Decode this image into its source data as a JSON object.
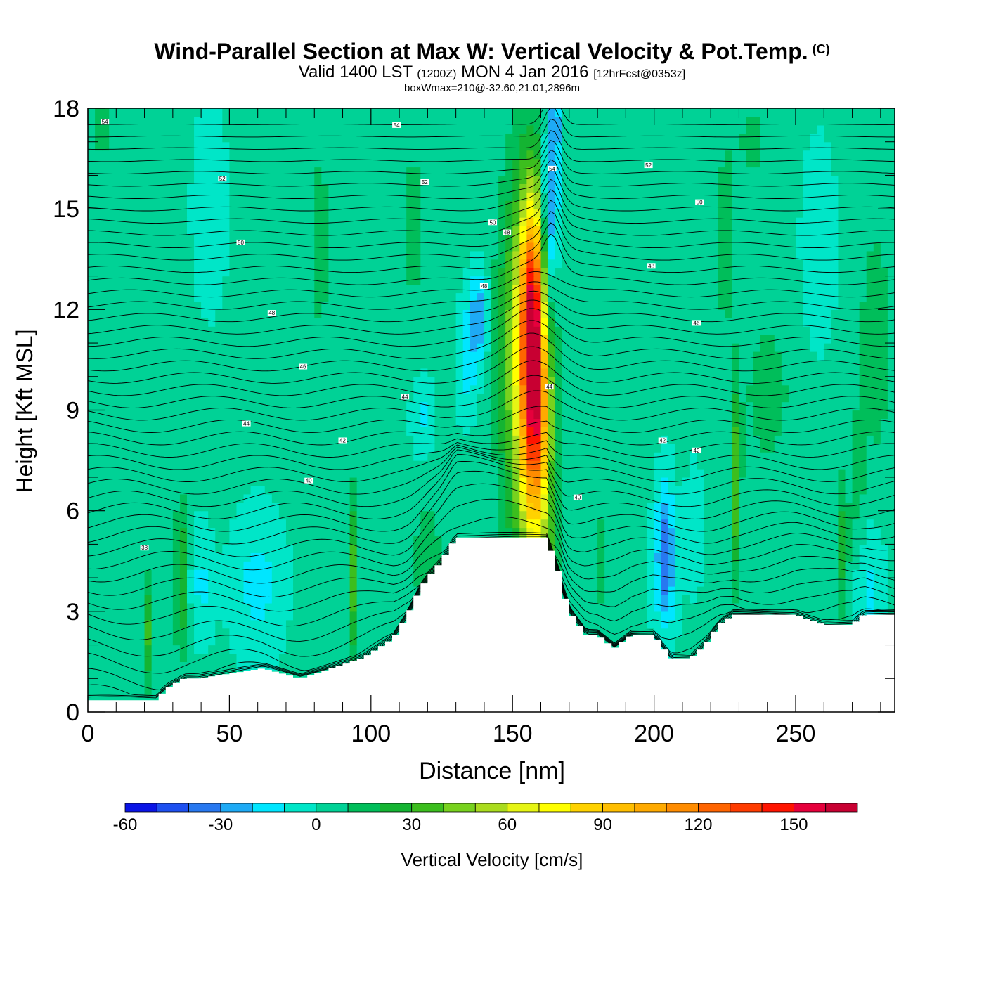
{
  "chart_data": {
    "type": "heatmap",
    "title": "Wind-Parallel Section at Max W: Vertical Velocity & Pot.Temp.",
    "title_mark": "(C)",
    "subtitle": {
      "valid": "Valid 1400 LST",
      "utc": "(1200Z)",
      "date": "MON 4 Jan 2016",
      "forecast": "[12hrFcst@0353z]"
    },
    "info_line": "boxWmax=210@-32.60,21.01,2896m",
    "xlabel": "Distance [nm]",
    "ylabel": "Height [Kft MSL]",
    "xlim": [
      0,
      285
    ],
    "ylim": [
      0,
      18
    ],
    "x_ticks": [
      0,
      50,
      100,
      150,
      200,
      250
    ],
    "x_tick_labels": [
      "0",
      "50",
      "100",
      "150",
      "200",
      "250"
    ],
    "y_ticks": [
      0,
      3,
      6,
      9,
      12,
      15,
      18
    ],
    "y_tick_labels": [
      "0",
      "3",
      "6",
      "9",
      "12",
      "15",
      "18"
    ],
    "colorbar": {
      "label": "Vertical Velocity [cm/s]",
      "bounds": [
        -60,
        -50,
        -40,
        -30,
        -20,
        -10,
        0,
        10,
        20,
        30,
        40,
        50,
        60,
        70,
        80,
        90,
        100,
        110,
        120,
        130,
        140,
        150,
        160,
        170
      ],
      "colors": [
        "#0a14e6",
        "#1e50f0",
        "#2878f0",
        "#1eaaf5",
        "#00e6ff",
        "#00e6c8",
        "#00d296",
        "#00be5a",
        "#14b432",
        "#3cbe1e",
        "#78d21e",
        "#aadc1e",
        "#e6f514",
        "#ffff00",
        "#ffd200",
        "#ffbe00",
        "#ffaa00",
        "#ff8c00",
        "#ff6400",
        "#ff3c00",
        "#ff1400",
        "#e6003c",
        "#c80032"
      ],
      "tick_values": [
        -60,
        -30,
        0,
        30,
        60,
        90,
        120,
        150
      ],
      "tick_labels": [
        "-60",
        "-30",
        "0",
        "30",
        "60",
        "90",
        "120",
        "150"
      ]
    },
    "background_w": 2,
    "w_features": [
      {
        "x": 158,
        "y": 10,
        "sx": 3.6,
        "sy": 3.5,
        "w": 158
      },
      {
        "x": 151,
        "y": 10.5,
        "sx": 4.5,
        "sy": 3.8,
        "w": 40
      },
      {
        "x": 156,
        "y": 12.5,
        "sx": 2.5,
        "sy": 2,
        "w": 30
      },
      {
        "x": 163,
        "y": 15,
        "sx": 2.2,
        "sy": 1.7,
        "w": -48
      },
      {
        "x": 162,
        "y": 12,
        "sx": 1.6,
        "sy": 1.4,
        "w": -28
      },
      {
        "x": 165,
        "y": 17.5,
        "sx": 1.3,
        "sy": 0.7,
        "w": -30
      },
      {
        "x": 138,
        "y": 11.8,
        "sx": 2.2,
        "sy": 0.9,
        "w": -32
      },
      {
        "x": 134,
        "y": 10.5,
        "sx": 2.5,
        "sy": 1.1,
        "w": -18
      },
      {
        "x": 118,
        "y": 8.8,
        "sx": 2.5,
        "sy": 0.9,
        "w": -14
      },
      {
        "x": 94,
        "y": 4,
        "sx": 1.3,
        "sy": 1.8,
        "w": 34
      },
      {
        "x": 33,
        "y": 4,
        "sx": 1.6,
        "sy": 1.6,
        "w": 32
      },
      {
        "x": 21,
        "y": 2.4,
        "sx": 1.3,
        "sy": 1.2,
        "w": 30
      },
      {
        "x": 229,
        "y": 6.8,
        "sx": 1.2,
        "sy": 2,
        "w": 38
      },
      {
        "x": 267,
        "y": 5,
        "sx": 1.2,
        "sy": 1.5,
        "w": 28
      },
      {
        "x": 272,
        "y": 7,
        "sx": 1.5,
        "sy": 1.5,
        "w": 14
      },
      {
        "x": 204,
        "y": 5.2,
        "sx": 2.3,
        "sy": 1.3,
        "w": -30
      },
      {
        "x": 204,
        "y": 3.8,
        "sx": 2.8,
        "sy": 1.2,
        "w": -18
      },
      {
        "x": 60,
        "y": 3.8,
        "sx": 6,
        "sy": 1.4,
        "w": -16
      },
      {
        "x": 40,
        "y": 3.8,
        "sx": 3,
        "sy": 1.1,
        "w": -14
      },
      {
        "x": 276,
        "y": 3.5,
        "sx": 3.5,
        "sy": 1.3,
        "w": -14
      },
      {
        "x": 214,
        "y": 5.5,
        "sx": 2,
        "sy": 1.2,
        "w": -12
      },
      {
        "x": 120,
        "y": 4.5,
        "sx": 4,
        "sy": 1.5,
        "w": 14
      },
      {
        "x": 165,
        "y": 5,
        "sx": 3,
        "sy": 1.5,
        "w": 14
      },
      {
        "x": 181,
        "y": 4.5,
        "sx": 2,
        "sy": 1.5,
        "w": 12
      },
      {
        "x": 82,
        "y": 14,
        "sx": 3,
        "sy": 2.5,
        "w": 12
      },
      {
        "x": 115,
        "y": 14.5,
        "sx": 2.5,
        "sy": 2.5,
        "w": 12
      },
      {
        "x": 225,
        "y": 14,
        "sx": 3,
        "sy": 2.5,
        "w": 12
      },
      {
        "x": 240,
        "y": 9.5,
        "sx": 6,
        "sy": 1.6,
        "w": 14
      },
      {
        "x": 278,
        "y": 11,
        "sx": 4,
        "sy": 2.5,
        "w": 16
      },
      {
        "x": 5,
        "y": 17.5,
        "sx": 3,
        "sy": 0.8,
        "w": 12
      },
      {
        "x": 258,
        "y": 14,
        "sx": 4,
        "sy": 2,
        "w": -9
      },
      {
        "x": 43,
        "y": 15,
        "sx": 4,
        "sy": 2,
        "w": -9
      },
      {
        "x": 235,
        "y": 17,
        "sx": 5,
        "sy": 1.2,
        "w": 10
      }
    ],
    "terrain_profile": {
      "x": [
        0,
        24,
        28,
        34,
        39,
        62,
        75,
        86,
        97,
        108,
        113,
        117,
        120,
        125,
        130,
        135,
        145,
        150,
        153,
        158,
        162,
        166,
        168,
        170,
        176,
        180,
        186,
        192,
        200,
        206,
        213,
        218,
        223,
        228,
        240,
        250,
        260,
        270,
        274,
        285
      ],
      "y": [
        0.35,
        0.35,
        0.7,
        1.0,
        1.0,
        1.3,
        1.0,
        1.3,
        1.6,
        2.2,
        2.9,
        3.6,
        4.0,
        4.5,
        5.2,
        5.2,
        5.2,
        5.2,
        5.2,
        5.2,
        5.2,
        4.3,
        3.6,
        3.0,
        2.3,
        2.3,
        1.9,
        2.3,
        2.3,
        1.6,
        1.6,
        2.0,
        2.6,
        2.9,
        2.9,
        2.9,
        2.6,
        2.6,
        2.9,
        2.9
      ]
    },
    "theta_labels": [
      {
        "text": "54",
        "x": 6,
        "y": 17.6
      },
      {
        "text": "54",
        "x": 109,
        "y": 17.5
      },
      {
        "text": "54",
        "x": 164,
        "y": 16.2
      },
      {
        "text": "52",
        "x": 47.5,
        "y": 15.9
      },
      {
        "text": "52",
        "x": 119,
        "y": 15.8
      },
      {
        "text": "52",
        "x": 198,
        "y": 16.3
      },
      {
        "text": "50",
        "x": 143,
        "y": 14.6
      },
      {
        "text": "50",
        "x": 216,
        "y": 15.2
      },
      {
        "text": "50",
        "x": 54,
        "y": 14
      },
      {
        "text": "48",
        "x": 148,
        "y": 14.3
      },
      {
        "text": "48",
        "x": 140,
        "y": 12.7
      },
      {
        "text": "48",
        "x": 199,
        "y": 13.3
      },
      {
        "text": "48",
        "x": 65,
        "y": 11.9
      },
      {
        "text": "46",
        "x": 215,
        "y": 11.6
      },
      {
        "text": "46",
        "x": 76,
        "y": 10.3
      },
      {
        "text": "44",
        "x": 163,
        "y": 9.7
      },
      {
        "text": "44",
        "x": 112,
        "y": 9.4
      },
      {
        "text": "44",
        "x": 56,
        "y": 8.6
      },
      {
        "text": "42",
        "x": 90,
        "y": 8.1
      },
      {
        "text": "42",
        "x": 203,
        "y": 8.1
      },
      {
        "text": "42",
        "x": 215,
        "y": 7.8
      },
      {
        "text": "40",
        "x": 173,
        "y": 6.4
      },
      {
        "text": "40",
        "x": 78,
        "y": 6.9
      },
      {
        "text": "38",
        "x": 20,
        "y": 4.9
      }
    ]
  }
}
